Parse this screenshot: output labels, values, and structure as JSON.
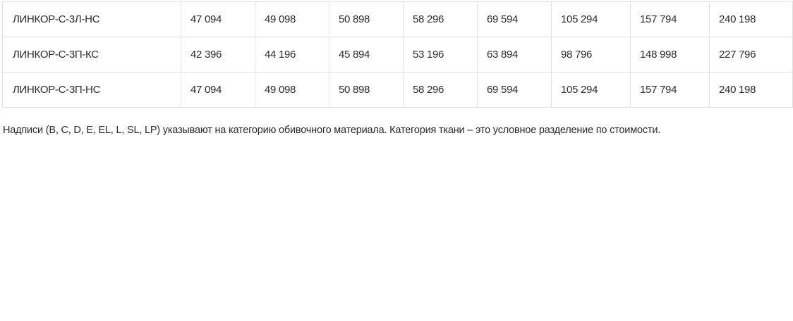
{
  "table": {
    "rows": [
      {
        "name": "ЛИНКОР-С-3Л-НС",
        "prices": [
          "47 094",
          "49 098",
          "50 898",
          "58 296",
          "69 594",
          "105 294",
          "157 794",
          "240 198"
        ]
      },
      {
        "name": "ЛИНКОР-С-3П-КС",
        "prices": [
          "42 396",
          "44 196",
          "45 894",
          "53 196",
          "63 894",
          "98 796",
          "148 998",
          "227 796"
        ]
      },
      {
        "name": "ЛИНКОР-С-3П-НС",
        "prices": [
          "47 094",
          "49 098",
          "50 898",
          "58 296",
          "69 594",
          "105 294",
          "157 794",
          "240 198"
        ]
      }
    ]
  },
  "note": "Надписи (B, C, D, E, EL, L, SL, LP) указывают на категорию обивочного материала. Категория ткани – это условное разделение по стоимости."
}
